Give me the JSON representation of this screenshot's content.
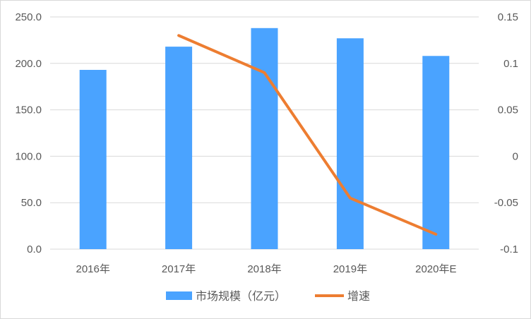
{
  "chart_data": {
    "type": "bar",
    "categories": [
      "2016年",
      "2017年",
      "2018年",
      "2019年",
      "2020年E"
    ],
    "series": [
      {
        "name": "市场规模（亿元）",
        "type": "bar",
        "axis": "left",
        "values": [
          193,
          218,
          238,
          227,
          208
        ],
        "color": "#4aa3ff"
      },
      {
        "name": "增速",
        "type": "line",
        "axis": "right",
        "values": [
          null,
          0.13,
          0.09,
          -0.045,
          -0.084
        ],
        "color": "#ed7d31"
      }
    ],
    "y_left": {
      "ylim": [
        0,
        250
      ],
      "ticks": [
        0,
        50,
        100,
        150,
        200,
        250
      ],
      "tick_labels": [
        "0.0",
        "50.0",
        "100.0",
        "150.0",
        "200.0",
        "250.0"
      ]
    },
    "y_right": {
      "ylim": [
        -0.1,
        0.15
      ],
      "ticks": [
        -0.1,
        -0.05,
        0,
        0.05,
        0.1,
        0.15
      ],
      "tick_labels": [
        "-0.1",
        "-0.05",
        "0",
        "0.05",
        "0.1",
        "0.15"
      ]
    },
    "grid": true,
    "legend": "bottom",
    "title": "",
    "xlabel": "",
    "ylabel": ""
  }
}
